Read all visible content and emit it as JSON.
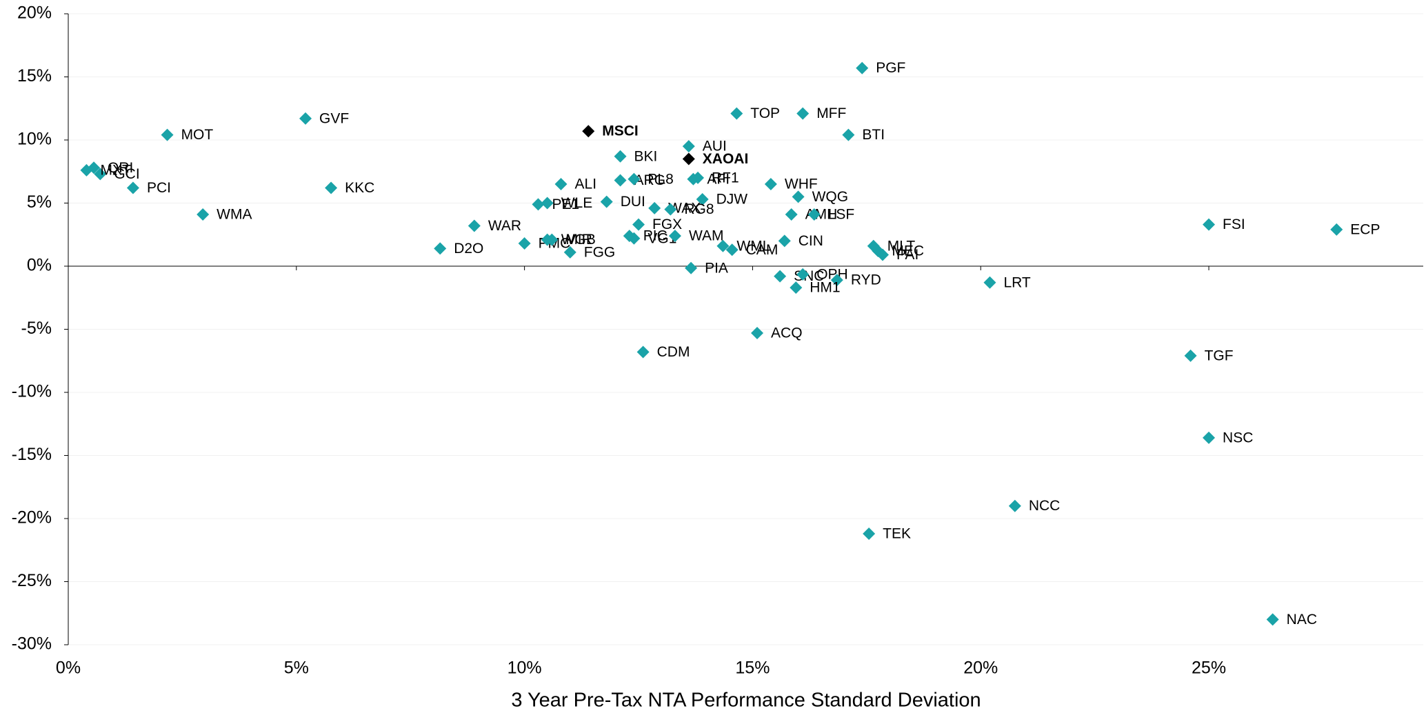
{
  "chart_data": {
    "type": "scatter",
    "x_label": "3 Year Pre-Tax NTA Performance Standard Deviation",
    "xlim": [
      0,
      29.7
    ],
    "xticks": [
      {
        "value": 0,
        "label": "0%"
      },
      {
        "value": 5,
        "label": "5%"
      },
      {
        "value": 10,
        "label": "10%"
      },
      {
        "value": 15,
        "label": "15%"
      },
      {
        "value": 20,
        "label": "20%"
      },
      {
        "value": 25,
        "label": "25%"
      }
    ],
    "ylim": [
      -30,
      20
    ],
    "yticks": [
      {
        "value": 20,
        "label": "20%"
      },
      {
        "value": 15,
        "label": "15%"
      },
      {
        "value": 10,
        "label": "10%"
      },
      {
        "value": 5,
        "label": "5%"
      },
      {
        "value": 0,
        "label": "0%"
      },
      {
        "value": -5,
        "label": "-5%"
      },
      {
        "value": -10,
        "label": "-10%"
      },
      {
        "value": -15,
        "label": "-15%"
      },
      {
        "value": -20,
        "label": "-20%"
      },
      {
        "value": -25,
        "label": "-25%"
      },
      {
        "value": -30,
        "label": "-30%"
      }
    ],
    "grid": true,
    "series": [
      {
        "color": "#1aa3a8",
        "label_bold": false,
        "labels": [
          "PGF",
          "TOP",
          "MFF",
          "GVF",
          "MOT",
          "BTI",
          "AUI",
          "BKI",
          "QRI",
          "GCI",
          "MXT",
          "PCI",
          "KKC",
          "WMA",
          "ALI",
          "ARG",
          "PL8",
          "RF1",
          "AFI",
          "DUI",
          "WLE",
          "PE1",
          "WHF",
          "WQG",
          "DJW",
          "WAX",
          "RG8",
          "AMH",
          "LSF",
          "FGX",
          "WAR",
          "CIN",
          "PMC",
          "WGB",
          "MIR",
          "D2O",
          "FGG",
          "PIC",
          "VG1",
          "WAM",
          "WML",
          "CAM",
          "PIA",
          "MLT",
          "MEC",
          "PAI",
          "SNC",
          "OPH",
          "RYD",
          "HM1",
          "LRT",
          "ACQ",
          "CDM",
          "TGF",
          "FSI",
          "ECP",
          "NSC",
          "NCC",
          "TEK",
          "NAC"
        ],
        "x": [
          17.4,
          14.65,
          16.1,
          5.2,
          2.17,
          17.1,
          13.6,
          12.1,
          0.56,
          0.7,
          0.4,
          1.42,
          5.76,
          2.95,
          10.8,
          12.1,
          12.4,
          13.8,
          13.7,
          11.8,
          10.5,
          10.3,
          15.4,
          16.0,
          13.9,
          12.85,
          13.2,
          15.85,
          16.35,
          12.5,
          8.9,
          15.7,
          10.0,
          10.5,
          10.6,
          8.15,
          11.0,
          12.3,
          12.4,
          13.3,
          14.35,
          14.55,
          13.65,
          17.65,
          17.75,
          17.85,
          15.6,
          16.1,
          16.85,
          15.95,
          20.2,
          15.1,
          12.6,
          24.6,
          25.0,
          27.8,
          25.0,
          20.75,
          17.55,
          26.4
        ],
        "values": [
          15.7,
          12.1,
          12.1,
          11.7,
          10.4,
          10.4,
          9.5,
          8.7,
          7.8,
          7.3,
          7.6,
          6.2,
          6.2,
          4.1,
          6.5,
          6.8,
          6.9,
          7.0,
          6.9,
          5.1,
          5.0,
          4.9,
          6.5,
          5.5,
          5.3,
          4.6,
          4.5,
          4.1,
          4.1,
          3.3,
          3.2,
          2.0,
          1.8,
          2.1,
          2.1,
          1.4,
          1.1,
          2.4,
          2.2,
          2.4,
          1.6,
          1.3,
          -0.15,
          1.6,
          1.2,
          0.9,
          -0.8,
          -0.65,
          -1.1,
          -1.7,
          -1.3,
          -5.3,
          -6.8,
          -7.1,
          3.3,
          2.9,
          -13.6,
          -19.0,
          -21.2,
          -28.0
        ]
      },
      {
        "color": "#000000",
        "label_bold": true,
        "labels": [
          "MSCI",
          "XAOAI"
        ],
        "x": [
          11.4,
          13.6
        ],
        "values": [
          10.7,
          8.5
        ]
      }
    ]
  }
}
